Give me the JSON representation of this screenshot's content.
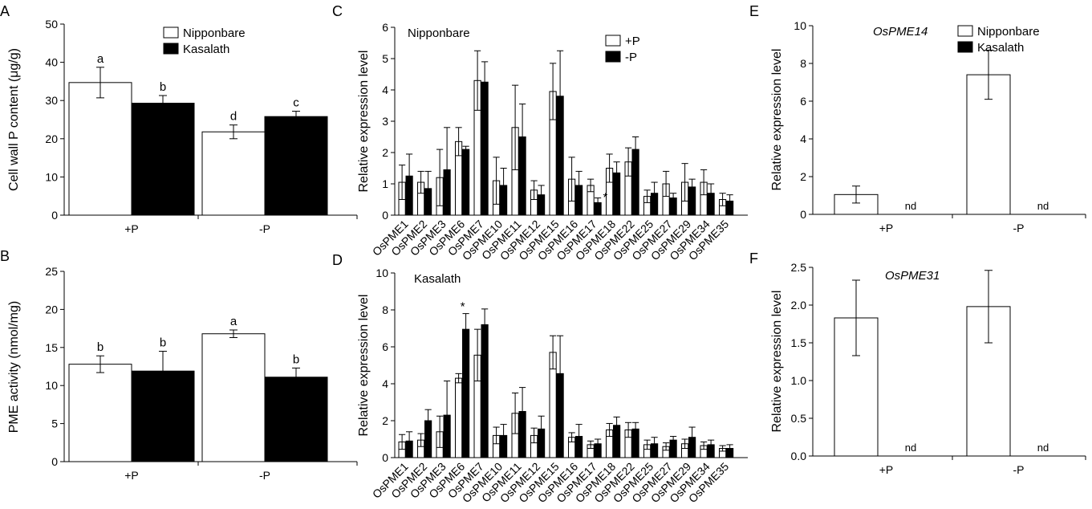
{
  "chart_data": [
    {
      "panel": "A",
      "type": "bar",
      "ylabel": "Cell wall P content (μg/g)",
      "ylim": [
        0,
        50
      ],
      "yticks": [
        0,
        10,
        20,
        30,
        40,
        50
      ],
      "categories": [
        "+P",
        "-P"
      ],
      "series": [
        {
          "name": "Nipponbare",
          "color": "#ffffff",
          "values": [
            34.7,
            21.8
          ],
          "errors": [
            4.0,
            1.8
          ]
        },
        {
          "name": "Kasalath",
          "color": "#000000",
          "values": [
            29.3,
            25.8
          ],
          "errors": [
            2.0,
            1.4
          ]
        }
      ],
      "letters": [
        [
          "a",
          "d"
        ],
        [
          "b",
          "c"
        ]
      ],
      "legend_position": "top-right"
    },
    {
      "panel": "B",
      "type": "bar",
      "ylabel": "PME activity (nmol/mg)",
      "ylim": [
        0,
        25
      ],
      "yticks": [
        0,
        5,
        10,
        15,
        20,
        25
      ],
      "ytick_labels": [
        "0",
        "5",
        "10",
        "15",
        "20",
        "25"
      ],
      "categories": [
        "+P",
        "-P"
      ],
      "series": [
        {
          "name": "Nipponbare",
          "color": "#ffffff",
          "values": [
            12.8,
            16.8
          ],
          "errors": [
            1.1,
            0.5
          ]
        },
        {
          "name": "Kasalath",
          "color": "#000000",
          "values": [
            11.9,
            11.1
          ],
          "errors": [
            2.6,
            1.2
          ]
        }
      ],
      "letters": [
        [
          "b",
          "a"
        ],
        [
          "b",
          "b"
        ]
      ]
    },
    {
      "panel": "C",
      "type": "bar",
      "title": "Nipponbare",
      "ylabel": "Relative expression level",
      "ylim": [
        0,
        6
      ],
      "yticks": [
        0,
        1,
        2,
        3,
        4,
        5,
        6
      ],
      "categories": [
        "OsPME1",
        "OsPME2",
        "OsPME3",
        "OsPME6",
        "OsPME7",
        "OsPME10",
        "OsPME11",
        "OsPME12",
        "OsPME15",
        "OsPME16",
        "OsPME17",
        "OsPME18",
        "OsPME22",
        "OsPME25",
        "OsPME27",
        "OsPME29",
        "OsPME34",
        "OsPME35"
      ],
      "series": [
        {
          "name": "+P",
          "color": "#ffffff",
          "values": [
            1.05,
            1.05,
            1.2,
            2.35,
            4.3,
            1.1,
            2.8,
            0.8,
            3.95,
            1.15,
            0.95,
            1.5,
            1.7,
            0.6,
            1.0,
            1.05,
            1.05,
            0.5
          ],
          "errors": [
            0.55,
            0.35,
            0.9,
            0.45,
            0.95,
            0.75,
            1.35,
            0.3,
            0.9,
            0.7,
            0.2,
            0.45,
            0.45,
            0.2,
            0.4,
            0.6,
            0.4,
            0.2
          ]
        },
        {
          "name": "-P",
          "color": "#000000",
          "values": [
            1.25,
            0.85,
            1.45,
            2.1,
            4.25,
            0.95,
            2.5,
            0.65,
            3.8,
            0.95,
            0.4,
            1.35,
            2.1,
            0.7,
            0.55,
            0.9,
            0.7,
            0.45
          ],
          "errors": [
            0.7,
            0.55,
            1.35,
            0.1,
            0.65,
            0.55,
            1.05,
            0.3,
            1.45,
            0.45,
            0.15,
            0.35,
            0.4,
            0.35,
            0.15,
            0.25,
            0.3,
            0.2
          ]
        }
      ],
      "stars": [
        {
          "category": "OsPME17",
          "label": "*"
        }
      ],
      "legend_position": "top-right"
    },
    {
      "panel": "D",
      "type": "bar",
      "title": "Kasalath",
      "ylabel": "Relative expression level",
      "ylim": [
        0,
        10
      ],
      "yticks": [
        0,
        2,
        4,
        6,
        8,
        10
      ],
      "categories": [
        "OsPME1",
        "OsPME2",
        "OsPME3",
        "OsPME6",
        "OsPME7",
        "OsPME10",
        "OsPME11",
        "OsPME12",
        "OsPME15",
        "OsPME16",
        "OsPME17",
        "OsPME18",
        "OsPME22",
        "OsPME25",
        "OsPME27",
        "OsPME29",
        "OsPME34",
        "OsPME35"
      ],
      "series": [
        {
          "name": "+P",
          "color": "#ffffff",
          "values": [
            0.85,
            0.95,
            1.4,
            4.3,
            5.55,
            1.2,
            2.4,
            1.2,
            5.7,
            1.1,
            0.7,
            1.5,
            1.5,
            0.7,
            0.6,
            0.75,
            0.65,
            0.5
          ],
          "errors": [
            0.4,
            0.35,
            0.85,
            0.25,
            1.4,
            0.45,
            1.1,
            0.4,
            0.9,
            0.25,
            0.2,
            0.35,
            0.4,
            0.25,
            0.2,
            0.25,
            0.2,
            0.15
          ]
        },
        {
          "name": "-P",
          "color": "#000000",
          "values": [
            0.9,
            2.0,
            2.3,
            6.95,
            7.2,
            1.2,
            2.5,
            1.55,
            4.55,
            1.15,
            0.75,
            1.75,
            1.55,
            0.75,
            0.95,
            1.1,
            0.7,
            0.5
          ],
          "errors": [
            0.5,
            0.6,
            1.85,
            0.85,
            0.85,
            0.6,
            1.3,
            0.7,
            2.05,
            0.65,
            0.25,
            0.45,
            0.35,
            0.35,
            0.2,
            0.55,
            0.25,
            0.2
          ]
        }
      ],
      "stars": [
        {
          "category": "OsPME6",
          "label": "*"
        }
      ]
    },
    {
      "panel": "E",
      "type": "bar",
      "title": "OsPME14",
      "ylabel": "Relative expression level",
      "ylim": [
        0,
        10
      ],
      "yticks": [
        0,
        2,
        4,
        6,
        8,
        10
      ],
      "categories": [
        "+P",
        "-P"
      ],
      "series": [
        {
          "name": "Nipponbare",
          "color": "#ffffff",
          "values": [
            1.05,
            7.4
          ],
          "errors": [
            0.45,
            1.3
          ]
        },
        {
          "name": "Kasalath",
          "color": "#000000",
          "values": [
            0,
            0
          ],
          "errors": [
            0,
            0
          ]
        }
      ],
      "missing_label": "nd",
      "legend_position": "top-right"
    },
    {
      "panel": "F",
      "type": "bar",
      "title": "OsPME31",
      "ylabel": "Relative expression level",
      "ylim": [
        0,
        2.5
      ],
      "yticks": [
        0,
        0.5,
        1,
        1.5,
        2,
        2.5
      ],
      "ytick_labels": [
        "0.0",
        "0.5",
        "1.0",
        "1.5",
        "2.0",
        "2.5"
      ],
      "categories": [
        "+P",
        "-P"
      ],
      "series": [
        {
          "name": "Nipponbare",
          "color": "#ffffff",
          "values": [
            1.83,
            1.98
          ],
          "errors": [
            0.5,
            0.48
          ]
        },
        {
          "name": "Kasalath",
          "color": "#000000",
          "values": [
            0,
            0
          ],
          "errors": [
            0,
            0
          ]
        }
      ],
      "missing_label": "nd"
    }
  ]
}
